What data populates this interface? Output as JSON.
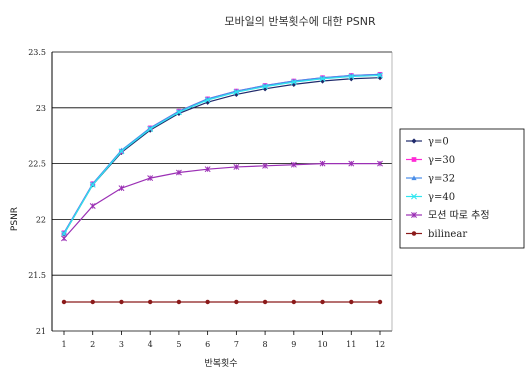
{
  "chart_data": {
    "type": "line",
    "title": "모바일의 반복횟수에 대한 PSNR",
    "xlabel": "반복횟수",
    "ylabel": "PSNR",
    "x": [
      1,
      2,
      3,
      4,
      5,
      6,
      7,
      8,
      9,
      10,
      11,
      12
    ],
    "ylim": [
      21,
      23.5
    ],
    "yticks": [
      21,
      21.5,
      22,
      22.5,
      23,
      23.5
    ],
    "ytick_labels": [
      "21",
      "21.5",
      "22",
      "22.5",
      "23",
      "23.5"
    ],
    "grid": "horizontal",
    "legend_position": "right",
    "series": [
      {
        "name": "γ=0",
        "color": "#1f2a6b",
        "marker": "diamond",
        "values": [
          21.87,
          22.31,
          22.6,
          22.8,
          22.95,
          23.05,
          23.12,
          23.17,
          23.21,
          23.24,
          23.26,
          23.27
        ]
      },
      {
        "name": "γ=30",
        "color": "#ff2bd6",
        "marker": "square",
        "values": [
          21.88,
          22.32,
          22.61,
          22.82,
          22.97,
          23.08,
          23.15,
          23.2,
          23.24,
          23.27,
          23.29,
          23.3
        ]
      },
      {
        "name": "γ=32",
        "color": "#4a8ee8",
        "marker": "triangle",
        "values": [
          21.88,
          22.32,
          22.62,
          22.82,
          22.97,
          23.08,
          23.15,
          23.2,
          23.24,
          23.27,
          23.29,
          23.3
        ]
      },
      {
        "name": "γ=40",
        "color": "#2ee6f0",
        "marker": "x",
        "values": [
          21.87,
          22.31,
          22.61,
          22.81,
          22.96,
          23.07,
          23.14,
          23.19,
          23.23,
          23.26,
          23.28,
          23.29
        ]
      },
      {
        "name": "모션 따로 추정",
        "color": "#9b30b5",
        "marker": "star",
        "values": [
          21.83,
          22.12,
          22.28,
          22.37,
          22.42,
          22.45,
          22.47,
          22.48,
          22.49,
          22.5,
          22.5,
          22.5
        ]
      },
      {
        "name": "bilinear",
        "color": "#8b1a1a",
        "marker": "circle",
        "values": [
          21.26,
          21.26,
          21.26,
          21.26,
          21.26,
          21.26,
          21.26,
          21.26,
          21.26,
          21.26,
          21.26,
          21.26
        ]
      }
    ]
  }
}
